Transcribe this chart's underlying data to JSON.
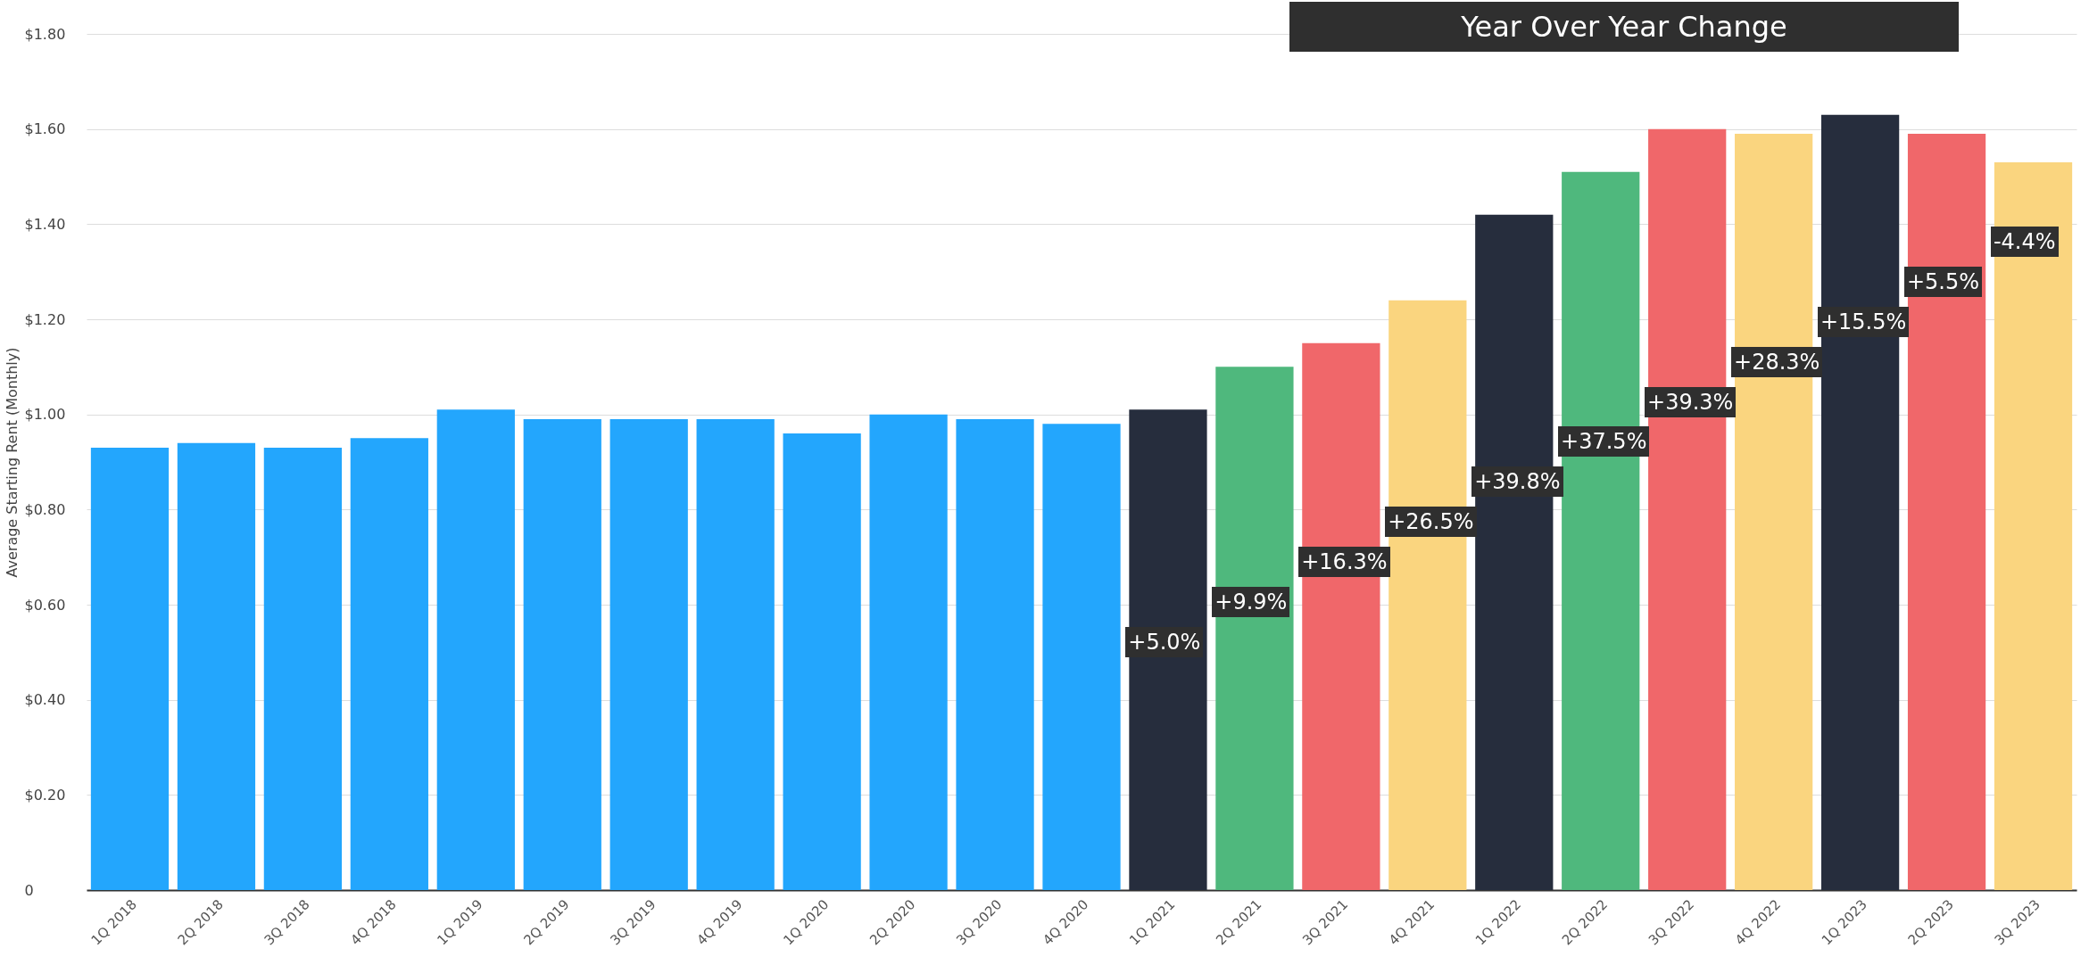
{
  "chart_data": {
    "type": "bar",
    "ylabel": "Average Starting Rent (Monthly)",
    "categories": [
      "1Q 2018",
      "2Q 2018",
      "3Q 2018",
      "4Q 2018",
      "1Q 2019",
      "2Q 2019",
      "3Q 2019",
      "4Q 2019",
      "1Q 2020",
      "2Q 2020",
      "3Q 2020",
      "4Q 2020",
      "1Q 2021",
      "2Q 2021",
      "3Q 2021",
      "4Q 2021",
      "1Q 2022",
      "2Q 2022",
      "3Q 2022",
      "4Q 2022",
      "1Q 2023",
      "2Q 2023",
      "3Q 2023"
    ],
    "values": [
      0.93,
      0.94,
      0.93,
      0.95,
      1.01,
      0.99,
      0.99,
      0.99,
      0.96,
      1.0,
      0.99,
      0.98,
      1.01,
      1.1,
      1.15,
      1.24,
      1.42,
      1.51,
      1.6,
      1.59,
      1.63,
      1.59,
      1.53
    ],
    "colors": [
      "#23a6fd",
      "#23a6fd",
      "#23a6fd",
      "#23a6fd",
      "#23a6fd",
      "#23a6fd",
      "#23a6fd",
      "#23a6fd",
      "#23a6fd",
      "#23a6fd",
      "#23a6fd",
      "#23a6fd",
      "#262d3d",
      "#4fb87d",
      "#f0676a",
      "#fad57f",
      "#262d3d",
      "#4fb87d",
      "#f0676a",
      "#fad57f",
      "#262d3d",
      "#f0676a",
      "#fad57f"
    ],
    "ylim": [
      0,
      1.8
    ],
    "yticks": [
      {
        "value": 0,
        "label": "0"
      },
      {
        "value": 0.2,
        "label": "$0.20"
      },
      {
        "value": 0.4,
        "label": "$0.40"
      },
      {
        "value": 0.6,
        "label": "$0.60"
      },
      {
        "value": 0.8,
        "label": "$0.80"
      },
      {
        "value": 1.0,
        "label": "$1.00"
      },
      {
        "value": 1.2,
        "label": "$1.20"
      },
      {
        "value": 1.4,
        "label": "$1.40"
      },
      {
        "value": 1.6,
        "label": "$1.60"
      },
      {
        "value": 1.8,
        "label": "$1.80"
      }
    ],
    "grid": "y",
    "annotations": [
      "Year Over Year Change",
      "+5.0%",
      "+9.9%",
      "+16.3%",
      "+26.5%",
      "+39.8%",
      "+37.5%",
      "+39.3%",
      "+28.3%",
      "+15.5%",
      "+5.5%",
      "-4.4%"
    ]
  }
}
